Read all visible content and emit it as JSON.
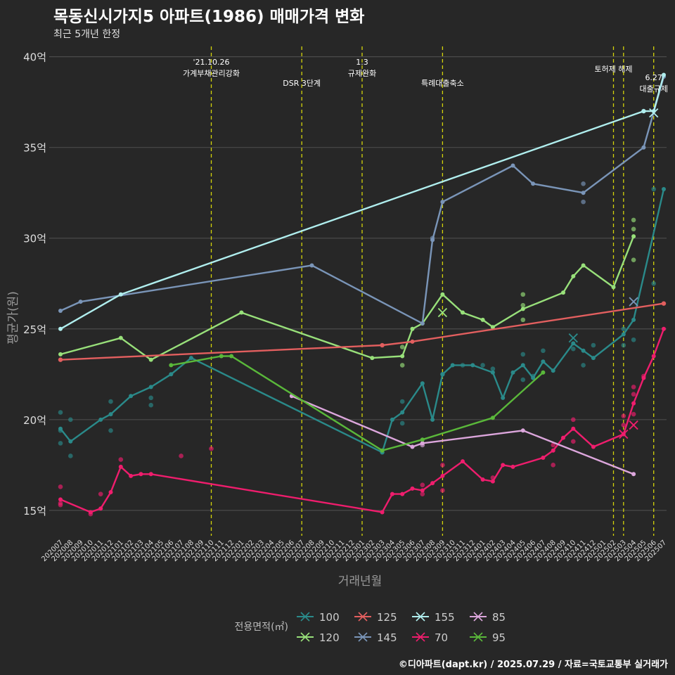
{
  "title": "목동신시가지5 아파트(1986) 매매가격 변화",
  "subtitle": "최근 5개년 한정",
  "caption": "©디아파트(dapt.kr) / 2025.07.29 / 자료=국토교통부 실거래가",
  "colors": {
    "background": "#272727",
    "grid": "#4a4a4a",
    "vline": "#d4d40a",
    "text": "#ffffff",
    "axis_text": "#dddddd",
    "axis_title": "#9a9a9a"
  },
  "chart_data": {
    "type": "line",
    "xlabel": "거래년월",
    "ylabel": "평균가(원)",
    "ylim": [
      13.6,
      40.8
    ],
    "yticks": [
      15,
      20,
      25,
      30,
      35,
      40
    ],
    "ytick_labels": [
      "15억",
      "20억",
      "25억",
      "30억",
      "35억",
      "40억"
    ],
    "grid": true,
    "legend_title": "전용면적(㎡)",
    "legend_position": "bottom",
    "months": [
      "202007",
      "202008",
      "202009",
      "202010",
      "202011",
      "202012",
      "202101",
      "202102",
      "202103",
      "202104",
      "202105",
      "202106",
      "202107",
      "202108",
      "202109",
      "202110",
      "202111",
      "202112",
      "202201",
      "202202",
      "202203",
      "202204",
      "202205",
      "202206",
      "202207",
      "202208",
      "202209",
      "202210",
      "202211",
      "202212",
      "202301",
      "202302",
      "202303",
      "202304",
      "202305",
      "202306",
      "202307",
      "202308",
      "202309",
      "202310",
      "202311",
      "202312",
      "202401",
      "202402",
      "202403",
      "202404",
      "202405",
      "202406",
      "202407",
      "202408",
      "202409",
      "202410",
      "202411",
      "202412",
      "202501",
      "202502",
      "202503",
      "202504",
      "202505",
      "202506",
      "202507"
    ],
    "events": [
      {
        "x": "202110",
        "lines": [
          "'21.10.26",
          "가계부채관리강화"
        ],
        "row": 1
      },
      {
        "x": "202207",
        "lines": [
          "DSR 3단계"
        ],
        "row": 2
      },
      {
        "x": "202301",
        "lines": [
          "1.3",
          "규제완화"
        ],
        "row": 1
      },
      {
        "x": "202309",
        "lines": [
          "특례대출축소"
        ],
        "row": 2
      },
      {
        "x": "202502",
        "lines": [
          "토허제 해제"
        ],
        "row": 0
      },
      {
        "x": "202503",
        "lines": [],
        "row": 0
      },
      {
        "x": "202506",
        "lines": [
          "6.27",
          "대출규제"
        ],
        "row": 1.7
      }
    ],
    "series": [
      {
        "name": "100",
        "color": "#2a8a8a",
        "line": [
          [
            "202007",
            19.5
          ],
          [
            "202008",
            18.8
          ],
          [
            "202011",
            20.0
          ],
          [
            "202012",
            20.3
          ],
          [
            "202102",
            21.3
          ],
          [
            "202104",
            21.8
          ],
          [
            "202106",
            22.5
          ],
          [
            "202108",
            23.4
          ],
          [
            "202303",
            18.2
          ],
          [
            "202304",
            20.0
          ],
          [
            "202305",
            20.4
          ],
          [
            "202307",
            22.0
          ],
          [
            "202308",
            20.0
          ],
          [
            "202309",
            22.5
          ],
          [
            "202310",
            23.0
          ],
          [
            "202312",
            23.0
          ],
          [
            "202402",
            22.6
          ],
          [
            "202403",
            21.2
          ],
          [
            "202404",
            22.6
          ],
          [
            "202405",
            23.0
          ],
          [
            "202406",
            22.3
          ],
          [
            "202407",
            23.2
          ],
          [
            "202408",
            22.7
          ],
          [
            "202410",
            24.2
          ],
          [
            "202411",
            23.8
          ],
          [
            "202412",
            23.4
          ],
          [
            "202503",
            24.7
          ],
          [
            "202504",
            25.5
          ],
          [
            "202507",
            32.7
          ]
        ],
        "points": [
          [
            "202007",
            20.4
          ],
          [
            "202007",
            19.4
          ],
          [
            "202007",
            18.7
          ],
          [
            "202008",
            20.0
          ],
          [
            "202008",
            18.0
          ],
          [
            "202012",
            21.0
          ],
          [
            "202012",
            19.4
          ],
          [
            "202104",
            21.2
          ],
          [
            "202104",
            20.8
          ],
          [
            "202303",
            18.2
          ],
          [
            "202305",
            21.0
          ],
          [
            "202305",
            19.8
          ],
          [
            "202309",
            22.5
          ],
          [
            "202311",
            23.0
          ],
          [
            "202401",
            23.0
          ],
          [
            "202402",
            22.8
          ],
          [
            "202405",
            23.6
          ],
          [
            "202405",
            22.2
          ],
          [
            "202406",
            22.4
          ],
          [
            "202407",
            23.8
          ],
          [
            "202410",
            23.9
          ],
          [
            "202411",
            23.0
          ],
          [
            "202412",
            24.1
          ],
          [
            "202503",
            24.1
          ],
          [
            "202503",
            25.0
          ],
          [
            "202504",
            24.4
          ],
          [
            "202506",
            27.5
          ],
          [
            "202506",
            32.7
          ]
        ],
        "crosses": [
          [
            "202410",
            24.5
          ]
        ]
      },
      {
        "name": "120",
        "color": "#98e07a",
        "line": [
          [
            "202007",
            23.6
          ],
          [
            "202101",
            24.5
          ],
          [
            "202104",
            23.3
          ],
          [
            "202201",
            25.9
          ],
          [
            "202302",
            23.4
          ],
          [
            "202305",
            23.5
          ],
          [
            "202306",
            25.0
          ],
          [
            "202307",
            25.3
          ],
          [
            "202309",
            26.9
          ],
          [
            "202311",
            25.9
          ],
          [
            "202401",
            25.5
          ],
          [
            "202402",
            25.1
          ],
          [
            "202405",
            26.1
          ],
          [
            "202409",
            27.0
          ],
          [
            "202410",
            27.9
          ],
          [
            "202411",
            28.5
          ],
          [
            "202502",
            27.3
          ],
          [
            "202504",
            30.1
          ]
        ],
        "points": [
          [
            "202305",
            23.0
          ],
          [
            "202305",
            24.0
          ],
          [
            "202405",
            26.9
          ],
          [
            "202405",
            26.3
          ],
          [
            "202405",
            25.5
          ],
          [
            "202504",
            31.0
          ],
          [
            "202504",
            30.5
          ],
          [
            "202504",
            28.8
          ]
        ],
        "crosses": [
          [
            "202309",
            25.9
          ]
        ]
      },
      {
        "name": "125",
        "color": "#e35f5f",
        "line": [
          [
            "202007",
            23.3
          ],
          [
            "202303",
            24.1
          ],
          [
            "202306",
            24.3
          ],
          [
            "202507",
            26.4
          ]
        ],
        "points": [
          [
            "202007",
            23.3
          ],
          [
            "202303",
            24.1
          ],
          [
            "202507",
            26.4
          ]
        ],
        "crosses": []
      },
      {
        "name": "145",
        "color": "#7a95b8",
        "line": [
          [
            "202007",
            26.0
          ],
          [
            "202009",
            26.5
          ],
          [
            "202208",
            28.5
          ],
          [
            "202307",
            25.3
          ],
          [
            "202308",
            29.9
          ],
          [
            "202309",
            32.0
          ],
          [
            "202404",
            34.0
          ],
          [
            "202406",
            33.0
          ],
          [
            "202411",
            32.5
          ],
          [
            "202505",
            35.0
          ],
          [
            "202507",
            38.9
          ]
        ],
        "points": [
          [
            "202308",
            30.0
          ],
          [
            "202411",
            33.0
          ],
          [
            "202411",
            32.0
          ]
        ],
        "crosses": [
          [
            "202504",
            26.5
          ]
        ]
      },
      {
        "name": "155",
        "color": "#b0eeee",
        "line": [
          [
            "202007",
            25.0
          ],
          [
            "202101",
            26.9
          ],
          [
            "202505",
            37.0
          ],
          [
            "202506",
            37.0
          ],
          [
            "202507",
            39.0
          ]
        ],
        "points": [
          [
            "202505",
            37.0
          ]
        ],
        "crosses": [
          [
            "202506",
            36.9
          ]
        ]
      },
      {
        "name": "70",
        "color": "#ef1d6d",
        "line": [
          [
            "202007",
            15.6
          ],
          [
            "202010",
            14.9
          ],
          [
            "202011",
            15.1
          ],
          [
            "202012",
            16.0
          ],
          [
            "202101",
            17.4
          ],
          [
            "202102",
            16.9
          ],
          [
            "202103",
            17.0
          ],
          [
            "202104",
            17.0
          ],
          [
            "202303",
            14.9
          ],
          [
            "202304",
            15.9
          ],
          [
            "202305",
            15.9
          ],
          [
            "202306",
            16.2
          ],
          [
            "202307",
            16.1
          ],
          [
            "202308",
            16.5
          ],
          [
            "202309",
            16.9
          ],
          [
            "202311",
            17.7
          ],
          [
            "202401",
            16.7
          ],
          [
            "202402",
            16.6
          ],
          [
            "202403",
            17.5
          ],
          [
            "202404",
            17.4
          ],
          [
            "202407",
            17.9
          ],
          [
            "202408",
            18.3
          ],
          [
            "202409",
            19.0
          ],
          [
            "202410",
            19.5
          ],
          [
            "202412",
            18.5
          ],
          [
            "202503",
            19.2
          ],
          [
            "202504",
            20.9
          ],
          [
            "202505",
            22.3
          ],
          [
            "202506",
            23.5
          ],
          [
            "202507",
            25.0
          ]
        ],
        "points": [
          [
            "202007",
            16.3
          ],
          [
            "202007",
            15.4
          ],
          [
            "202007",
            15.3
          ],
          [
            "202010",
            14.8
          ],
          [
            "202011",
            15.9
          ],
          [
            "202101",
            17.8
          ],
          [
            "202107",
            18.0
          ],
          [
            "202110",
            18.4
          ],
          [
            "202307",
            15.9
          ],
          [
            "202307",
            16.4
          ],
          [
            "202309",
            17.5
          ],
          [
            "202309",
            16.1
          ],
          [
            "202402",
            16.8
          ],
          [
            "202408",
            18.6
          ],
          [
            "202408",
            17.5
          ],
          [
            "202410",
            20.0
          ],
          [
            "202410",
            18.8
          ],
          [
            "202503",
            19.7
          ],
          [
            "202503",
            20.2
          ],
          [
            "202504",
            21.8
          ],
          [
            "202504",
            21.4
          ],
          [
            "202504",
            20.3
          ],
          [
            "202505",
            22.4
          ]
        ],
        "crosses": [
          [
            "202503",
            19.2
          ],
          [
            "202504",
            19.7
          ]
        ]
      },
      {
        "name": "85",
        "color": "#dca6dc",
        "line": [
          [
            "202206",
            21.3
          ],
          [
            "202306",
            18.5
          ],
          [
            "202307",
            18.7
          ],
          [
            "202405",
            19.4
          ],
          [
            "202504",
            17.0
          ]
        ],
        "points": [
          [
            "202307",
            18.6
          ]
        ],
        "crosses": []
      },
      {
        "name": "95",
        "color": "#5ab83a",
        "line": [
          [
            "202106",
            23.0
          ],
          [
            "202111",
            23.5
          ],
          [
            "202112",
            23.5
          ],
          [
            "202303",
            18.3
          ],
          [
            "202307",
            18.9
          ],
          [
            "202402",
            20.1
          ],
          [
            "202407",
            22.6
          ]
        ],
        "points": [],
        "crosses": []
      }
    ]
  }
}
